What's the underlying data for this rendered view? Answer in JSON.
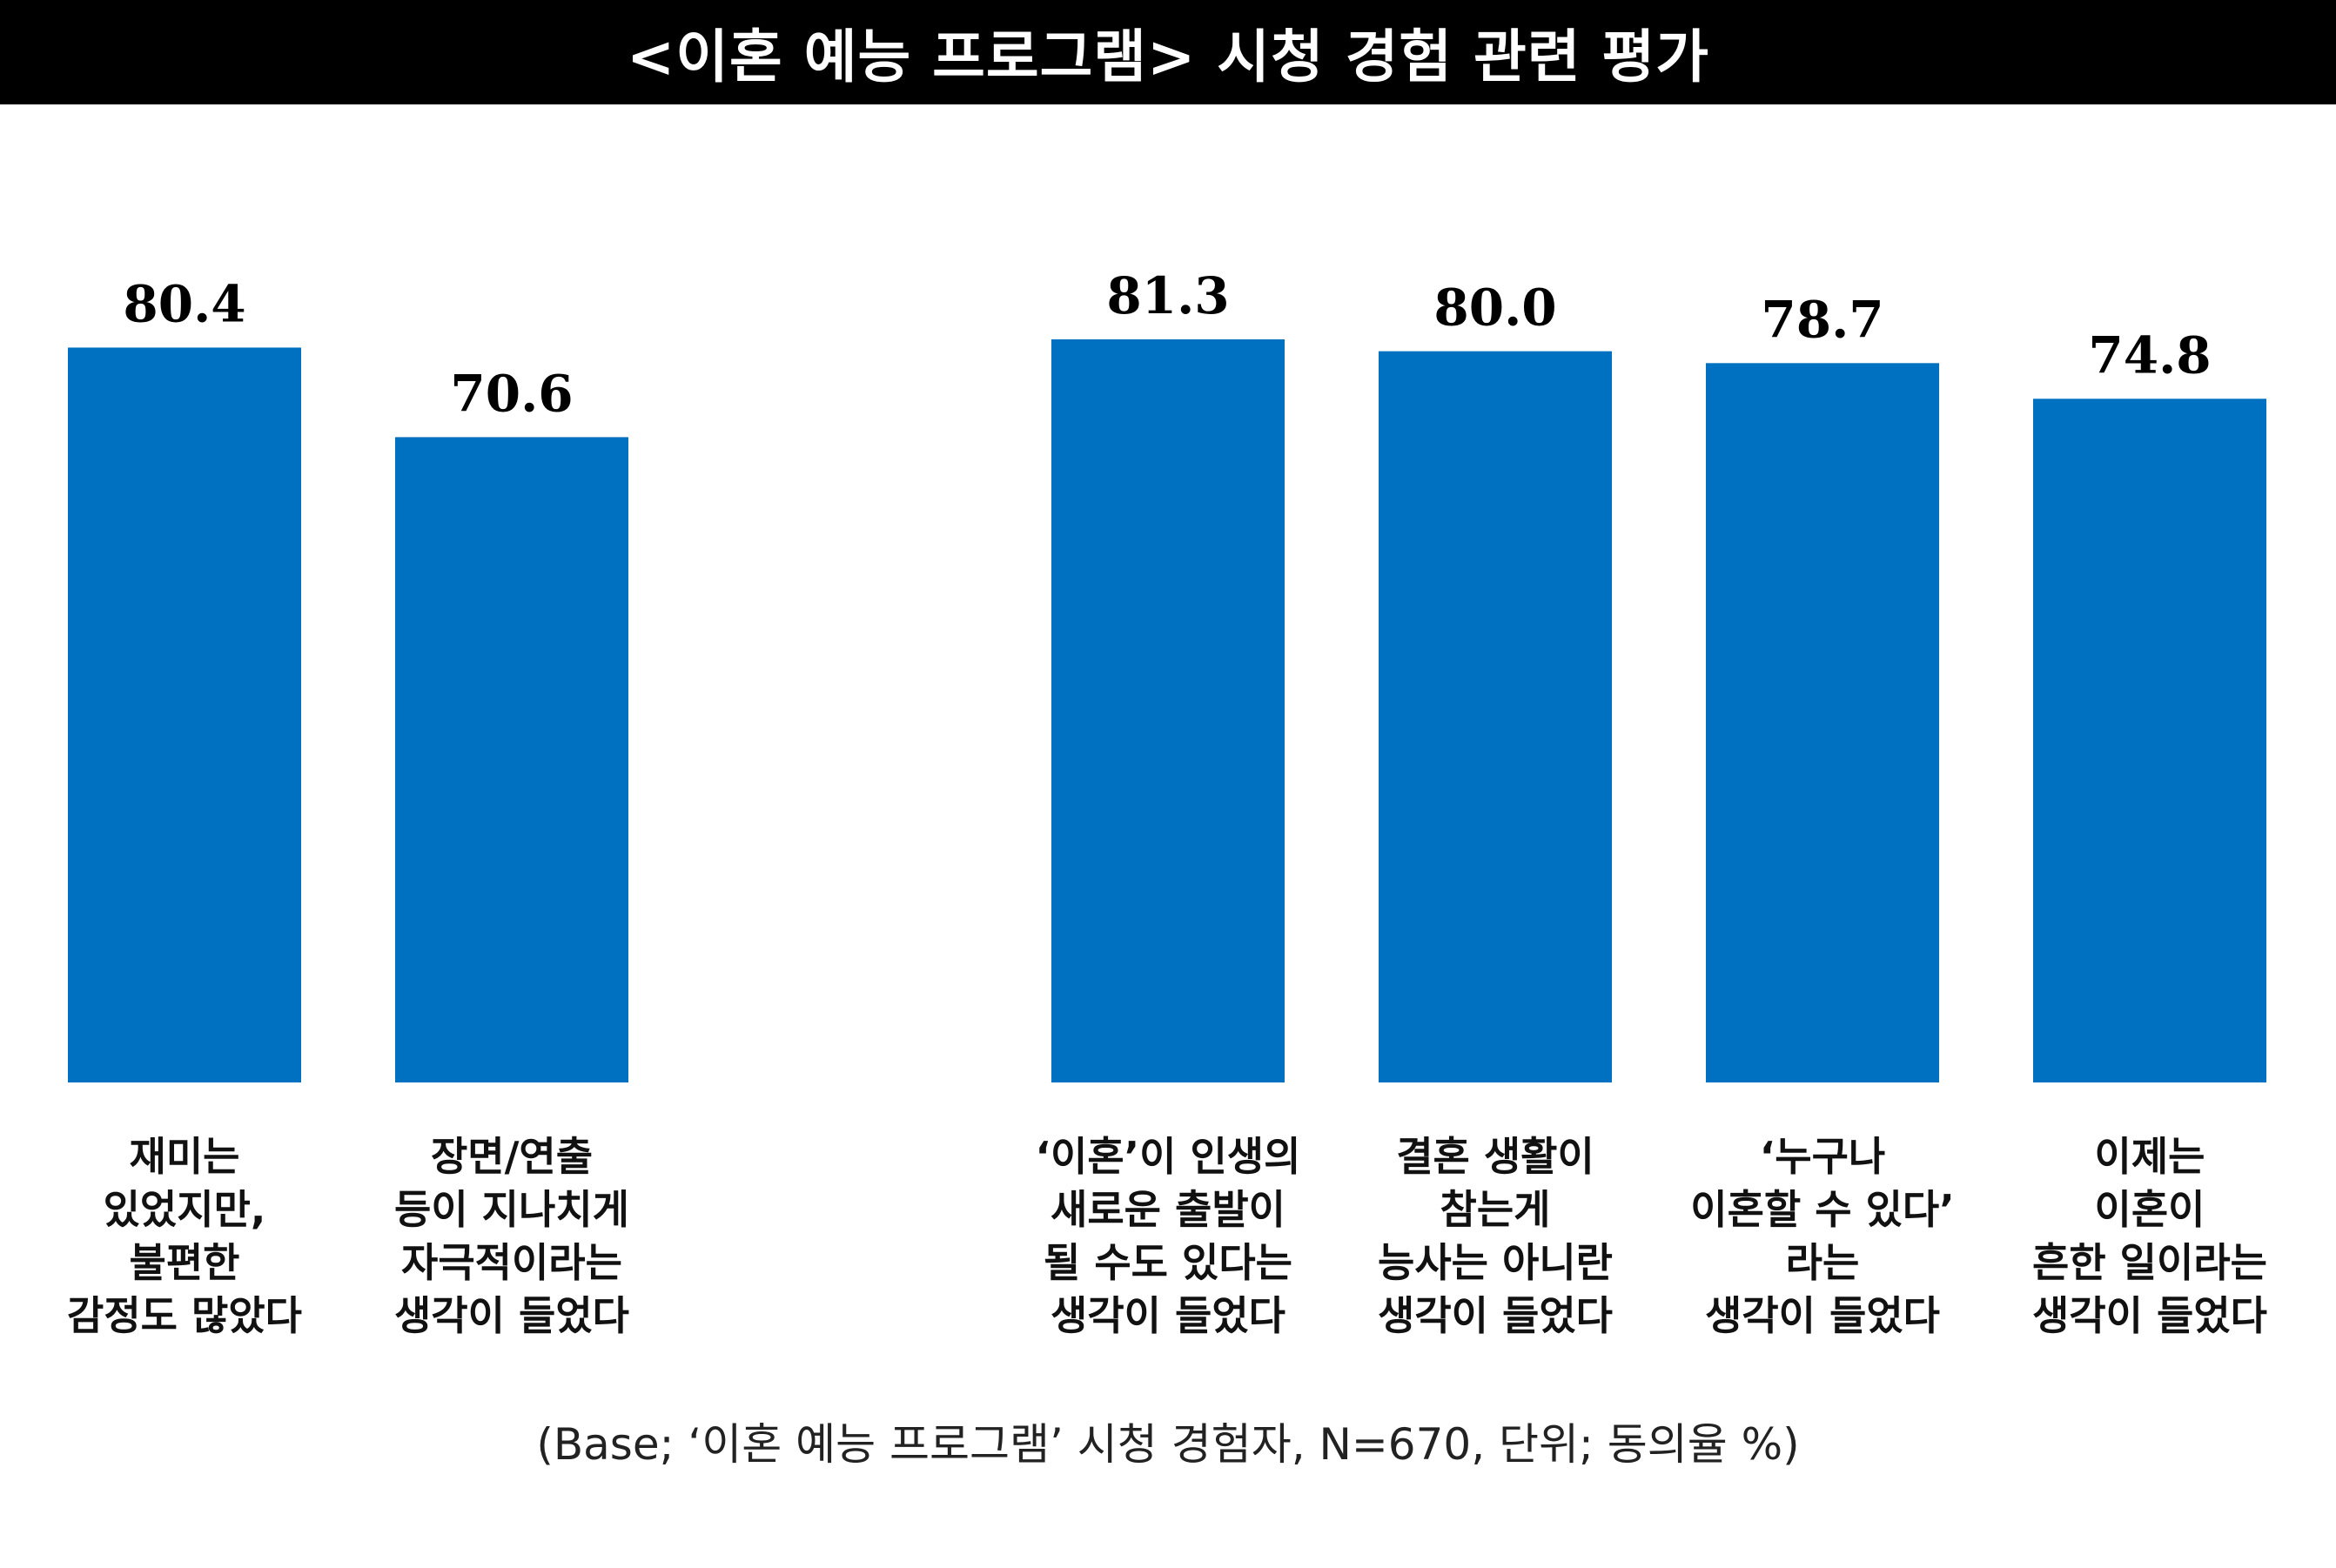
{
  "title": "<이혼 예능 프로그램> 시청 경험 관련 평가",
  "footnote": "(Base; ‘이혼 예능 프로그램’ 시청 경험자, N=670, 단위; 동의율 %)",
  "colors": {
    "bar": "#0070C0",
    "title_bg": "#000000",
    "title_text": "#FFFFFF",
    "value_text": "#000000"
  },
  "chart_data": {
    "type": "bar",
    "ylim": [
      0,
      100
    ],
    "grid": false,
    "categories": [
      [
        "재미는",
        "있었지만,",
        "불편한",
        "감정도 많았다"
      ],
      [
        "장면/연출",
        "등이 지나치게",
        "자극적이라는",
        "생각이 들었다"
      ],
      [
        "‘이혼’이 인생의",
        "새로운 출발이",
        "될 수도 있다는",
        "생각이 들었다"
      ],
      [
        "결혼 생활이",
        "참는게",
        "능사는 아니란",
        "생각이 들었다"
      ],
      [
        "‘누구나",
        "이혼할 수 있다’",
        "라는",
        "생각이 들었다"
      ],
      [
        "이제는",
        "이혼이",
        "흔한 일이라는",
        "생각이 들었다"
      ]
    ],
    "values": [
      80.4,
      70.6,
      81.3,
      80.0,
      78.7,
      74.8
    ],
    "value_labels": [
      "80.4",
      "70.6",
      "81.3",
      "80.0",
      "78.7",
      "74.8"
    ]
  }
}
